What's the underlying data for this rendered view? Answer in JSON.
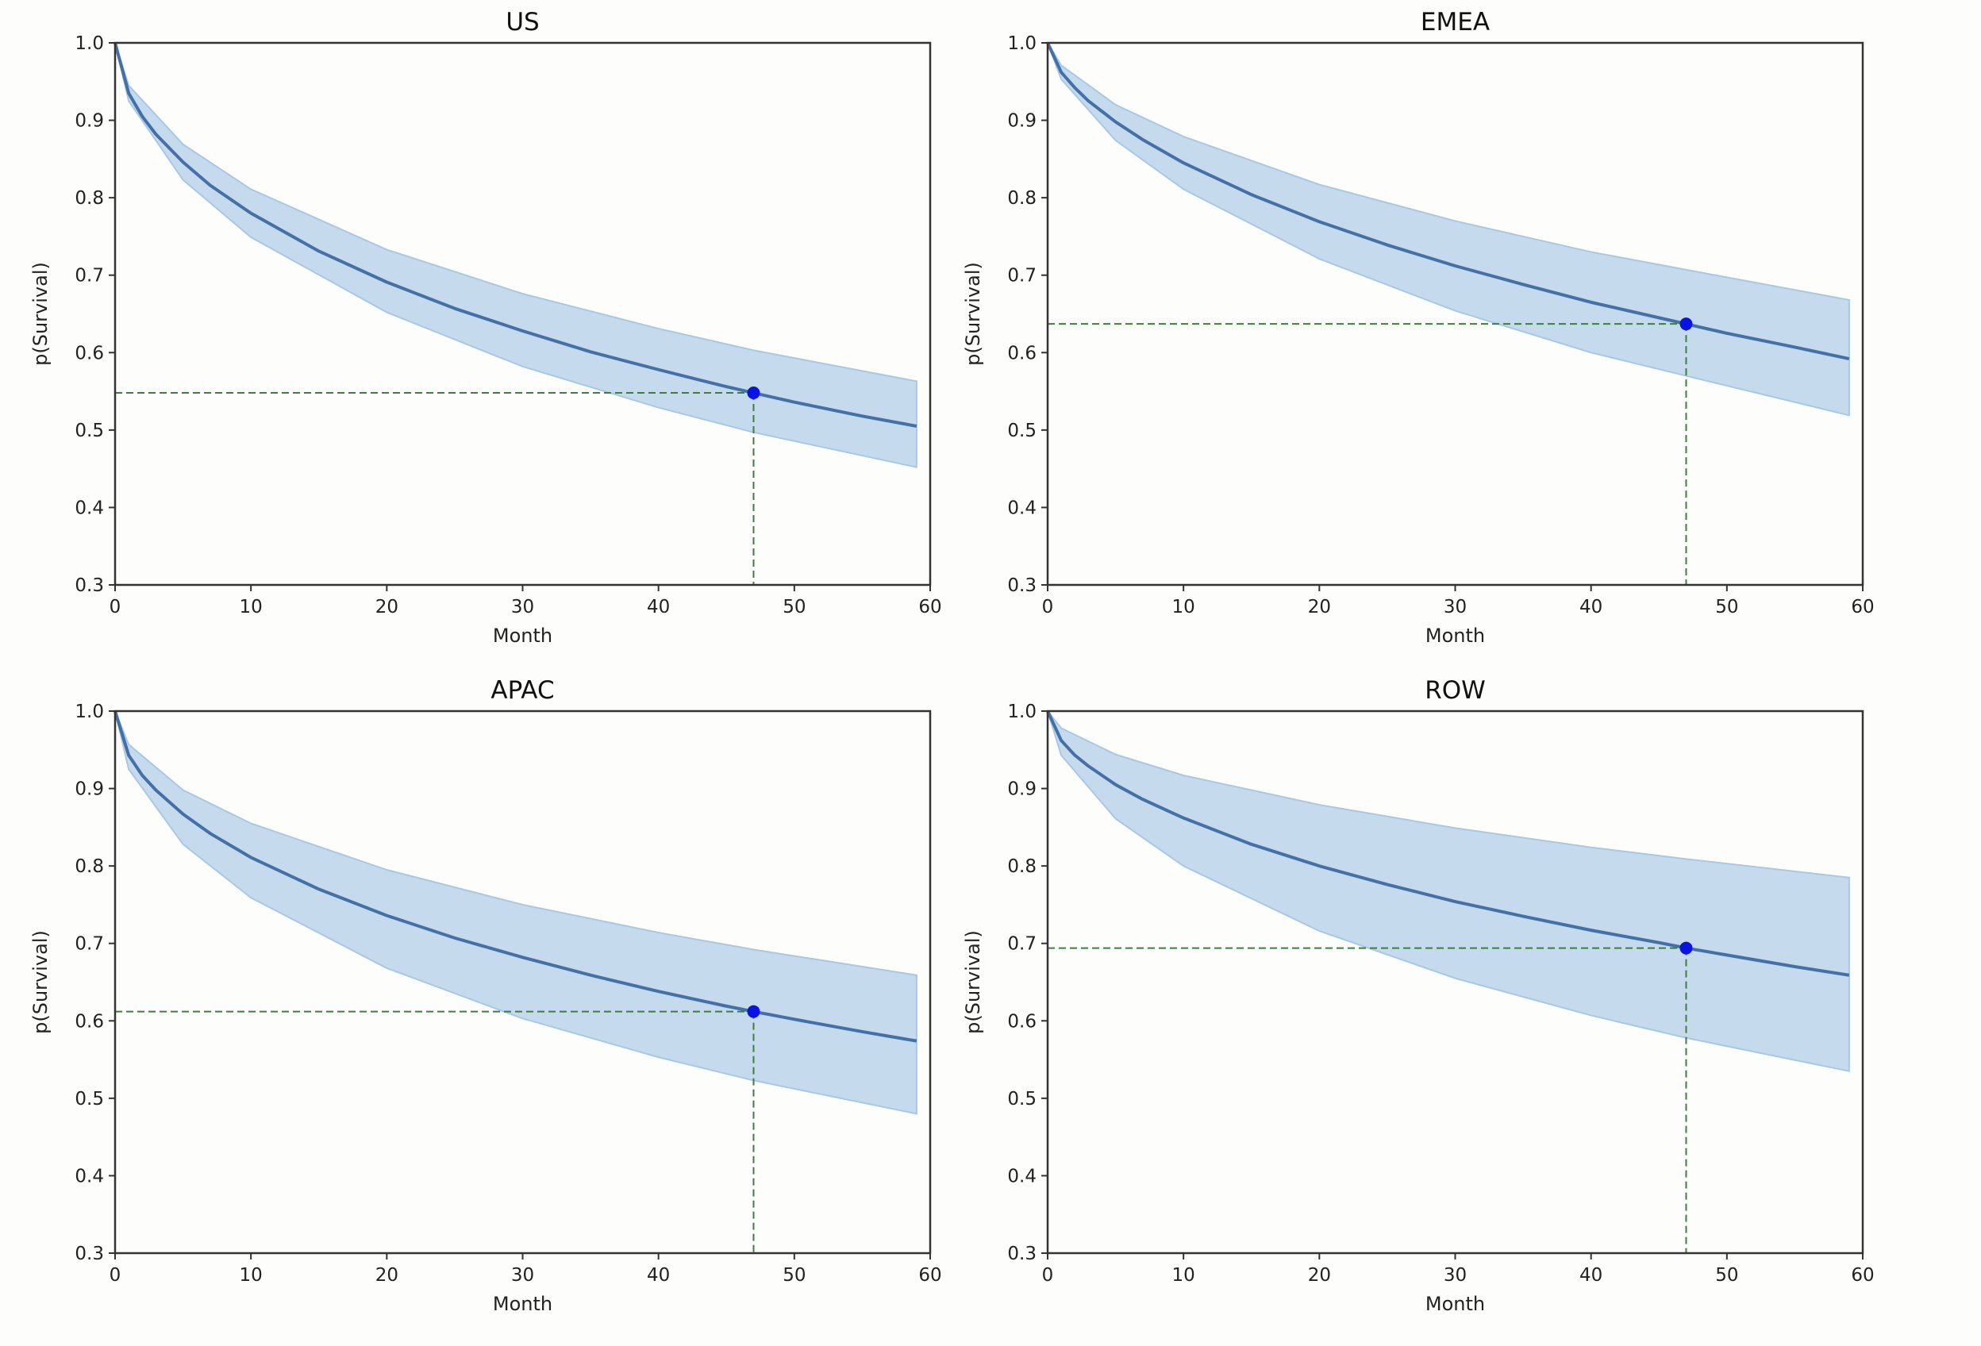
{
  "chart_data": [
    {
      "type": "line",
      "title": "US",
      "xlabel": "Month",
      "ylabel": "p(Survival)",
      "xlim": [
        0,
        60
      ],
      "ylim": [
        0.3,
        1.0
      ],
      "xticks": [
        "0",
        "10",
        "20",
        "30",
        "40",
        "50",
        "60"
      ],
      "yticks": [
        "0.3",
        "0.4",
        "0.5",
        "0.6",
        "0.7",
        "0.8",
        "0.9",
        "1.0"
      ],
      "grid": false,
      "x": [
        0,
        1,
        2,
        3,
        5,
        7,
        10,
        15,
        20,
        25,
        30,
        35,
        40,
        45,
        47,
        50,
        55,
        59
      ],
      "survival": [
        1,
        0.935,
        0.905,
        0.882,
        0.846,
        0.816,
        0.78,
        0.731,
        0.691,
        0.657,
        0.628,
        0.601,
        0.578,
        0.556,
        0.548,
        0.536,
        0.518,
        0.505
      ],
      "band_x": [
        0,
        1,
        5,
        10,
        20,
        30,
        40,
        47,
        59
      ],
      "band_upper": [
        1,
        0.945,
        0.869,
        0.811,
        0.733,
        0.676,
        0.631,
        0.603,
        0.563
      ],
      "band_lower": [
        1,
        0.925,
        0.823,
        0.749,
        0.652,
        0.582,
        0.529,
        0.497,
        0.452
      ],
      "marker": {
        "x": 47,
        "y": 0.548
      }
    },
    {
      "type": "line",
      "title": "EMEA",
      "xlabel": "Month",
      "ylabel": "p(Survival)",
      "xlim": [
        0,
        60
      ],
      "ylim": [
        0.3,
        1.0
      ],
      "xticks": [
        "0",
        "10",
        "20",
        "30",
        "40",
        "50",
        "60"
      ],
      "yticks": [
        "0.3",
        "0.4",
        "0.5",
        "0.6",
        "0.7",
        "0.8",
        "0.9",
        "1.0"
      ],
      "grid": false,
      "x": [
        0,
        1,
        2,
        3,
        5,
        7,
        10,
        15,
        20,
        25,
        30,
        35,
        40,
        45,
        47,
        50,
        55,
        59
      ],
      "survival": [
        1,
        0.962,
        0.942,
        0.925,
        0.898,
        0.875,
        0.845,
        0.804,
        0.769,
        0.739,
        0.712,
        0.688,
        0.665,
        0.645,
        0.637,
        0.625,
        0.607,
        0.592
      ],
      "band_x": [
        0,
        1,
        5,
        10,
        20,
        30,
        40,
        47,
        59
      ],
      "band_upper": [
        1,
        0.971,
        0.92,
        0.879,
        0.817,
        0.77,
        0.73,
        0.707,
        0.668
      ],
      "band_lower": [
        1,
        0.953,
        0.874,
        0.811,
        0.721,
        0.654,
        0.6,
        0.57,
        0.519
      ],
      "marker": {
        "x": 47,
        "y": 0.637
      }
    },
    {
      "type": "line",
      "title": "APAC",
      "xlabel": "Month",
      "ylabel": "p(Survival)",
      "xlim": [
        0,
        60
      ],
      "ylim": [
        0.3,
        1.0
      ],
      "xticks": [
        "0",
        "10",
        "20",
        "30",
        "40",
        "50",
        "60"
      ],
      "yticks": [
        "0.3",
        "0.4",
        "0.5",
        "0.6",
        "0.7",
        "0.8",
        "0.9",
        "1.0"
      ],
      "grid": false,
      "x": [
        0,
        1,
        2,
        3,
        5,
        7,
        10,
        15,
        20,
        25,
        30,
        35,
        40,
        45,
        47,
        50,
        55,
        59
      ],
      "survival": [
        1,
        0.943,
        0.917,
        0.898,
        0.867,
        0.842,
        0.811,
        0.77,
        0.736,
        0.707,
        0.682,
        0.659,
        0.638,
        0.619,
        0.612,
        0.602,
        0.586,
        0.574
      ],
      "band_x": [
        0,
        1,
        5,
        10,
        20,
        30,
        40,
        47,
        59
      ],
      "band_upper": [
        1,
        0.957,
        0.898,
        0.855,
        0.795,
        0.75,
        0.714,
        0.692,
        0.659
      ],
      "band_lower": [
        1,
        0.925,
        0.828,
        0.759,
        0.668,
        0.603,
        0.553,
        0.523,
        0.48
      ],
      "marker": {
        "x": 47,
        "y": 0.612
      }
    },
    {
      "type": "line",
      "title": "ROW",
      "xlabel": "Month",
      "ylabel": "p(Survival)",
      "xlim": [
        0,
        60
      ],
      "ylim": [
        0.3,
        1.0
      ],
      "xticks": [
        "0",
        "10",
        "20",
        "30",
        "40",
        "50",
        "60"
      ],
      "yticks": [
        "0.3",
        "0.4",
        "0.5",
        "0.6",
        "0.7",
        "0.8",
        "0.9",
        "1.0"
      ],
      "grid": false,
      "x": [
        0,
        1,
        2,
        3,
        5,
        7,
        10,
        15,
        20,
        25,
        30,
        35,
        40,
        45,
        47,
        50,
        55,
        59
      ],
      "survival": [
        1,
        0.962,
        0.943,
        0.929,
        0.905,
        0.886,
        0.862,
        0.828,
        0.8,
        0.776,
        0.754,
        0.735,
        0.717,
        0.701,
        0.694,
        0.685,
        0.67,
        0.659
      ],
      "band_x": [
        0,
        1,
        5,
        10,
        20,
        30,
        40,
        47,
        59
      ],
      "band_upper": [
        1,
        0.978,
        0.944,
        0.917,
        0.879,
        0.849,
        0.824,
        0.809,
        0.785
      ],
      "band_lower": [
        1,
        0.943,
        0.861,
        0.8,
        0.716,
        0.655,
        0.607,
        0.578,
        0.535
      ],
      "marker": {
        "x": 47,
        "y": 0.694
      }
    }
  ],
  "colors": {
    "line": "#4470a8",
    "band": "#a8c8e4",
    "marker": "#0a14e0",
    "guide": "#3d7f3d",
    "axes": "#333333"
  }
}
